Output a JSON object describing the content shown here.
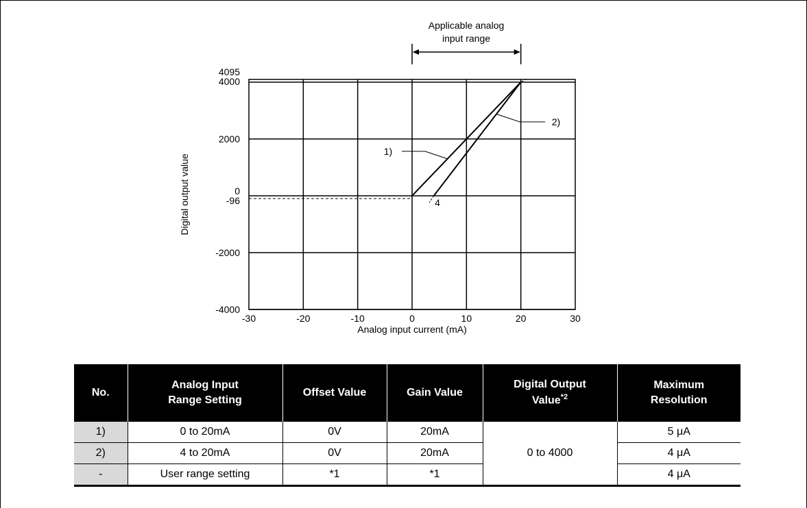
{
  "chart_data": {
    "type": "line",
    "annotation_top": [
      "Applicable analog",
      "input range"
    ],
    "xlabel": "Analog input current (mA)",
    "ylabel": "Digital output value",
    "xlim": [
      -30,
      30
    ],
    "ylim": [
      -4000,
      4095
    ],
    "x_ticks": [
      -30,
      -20,
      -10,
      0,
      10,
      20,
      30
    ],
    "y_ticks": [
      4095,
      4000,
      2000,
      0,
      -96,
      -2000,
      -4000
    ],
    "grid": true,
    "series": [
      {
        "name": "1)",
        "x": [
          0,
          20
        ],
        "y": [
          0,
          4000
        ],
        "style": "solid"
      },
      {
        "name": "2)",
        "x": [
          4,
          20
        ],
        "y": [
          0,
          4000
        ],
        "style": "solid"
      },
      {
        "name": "",
        "x": [
          -30,
          -0.5,
          0
        ],
        "y": [
          -96,
          -96,
          0
        ],
        "style": "dashed"
      },
      {
        "name": "",
        "x": [
          20,
          21,
          30
        ],
        "y": [
          4000,
          4095,
          4095
        ],
        "style": "dashed"
      }
    ],
    "annotations": [
      "1)",
      "2)",
      "4"
    ]
  },
  "table": {
    "headers": [
      [
        "No."
      ],
      [
        "Analog Input",
        "Range Setting"
      ],
      [
        "Offset Value"
      ],
      [
        "Gain Value"
      ],
      [
        "Digital Output",
        "Value"
      ],
      [
        "Maximum",
        "Resolution"
      ]
    ],
    "header_footnote": "*2",
    "rows": [
      {
        "no": "1)",
        "range": "0 to 20mA",
        "offset": "0V",
        "gain": "20mA",
        "resolution": "5 μA"
      },
      {
        "no": "2)",
        "range": "4 to 20mA",
        "offset": "0V",
        "gain": "20mA",
        "resolution": "4 μA"
      },
      {
        "no": "-",
        "range": "User range setting",
        "offset": "*1",
        "gain": "*1",
        "resolution": "4 μA"
      }
    ],
    "digital_output_merged": "0 to 4000"
  }
}
